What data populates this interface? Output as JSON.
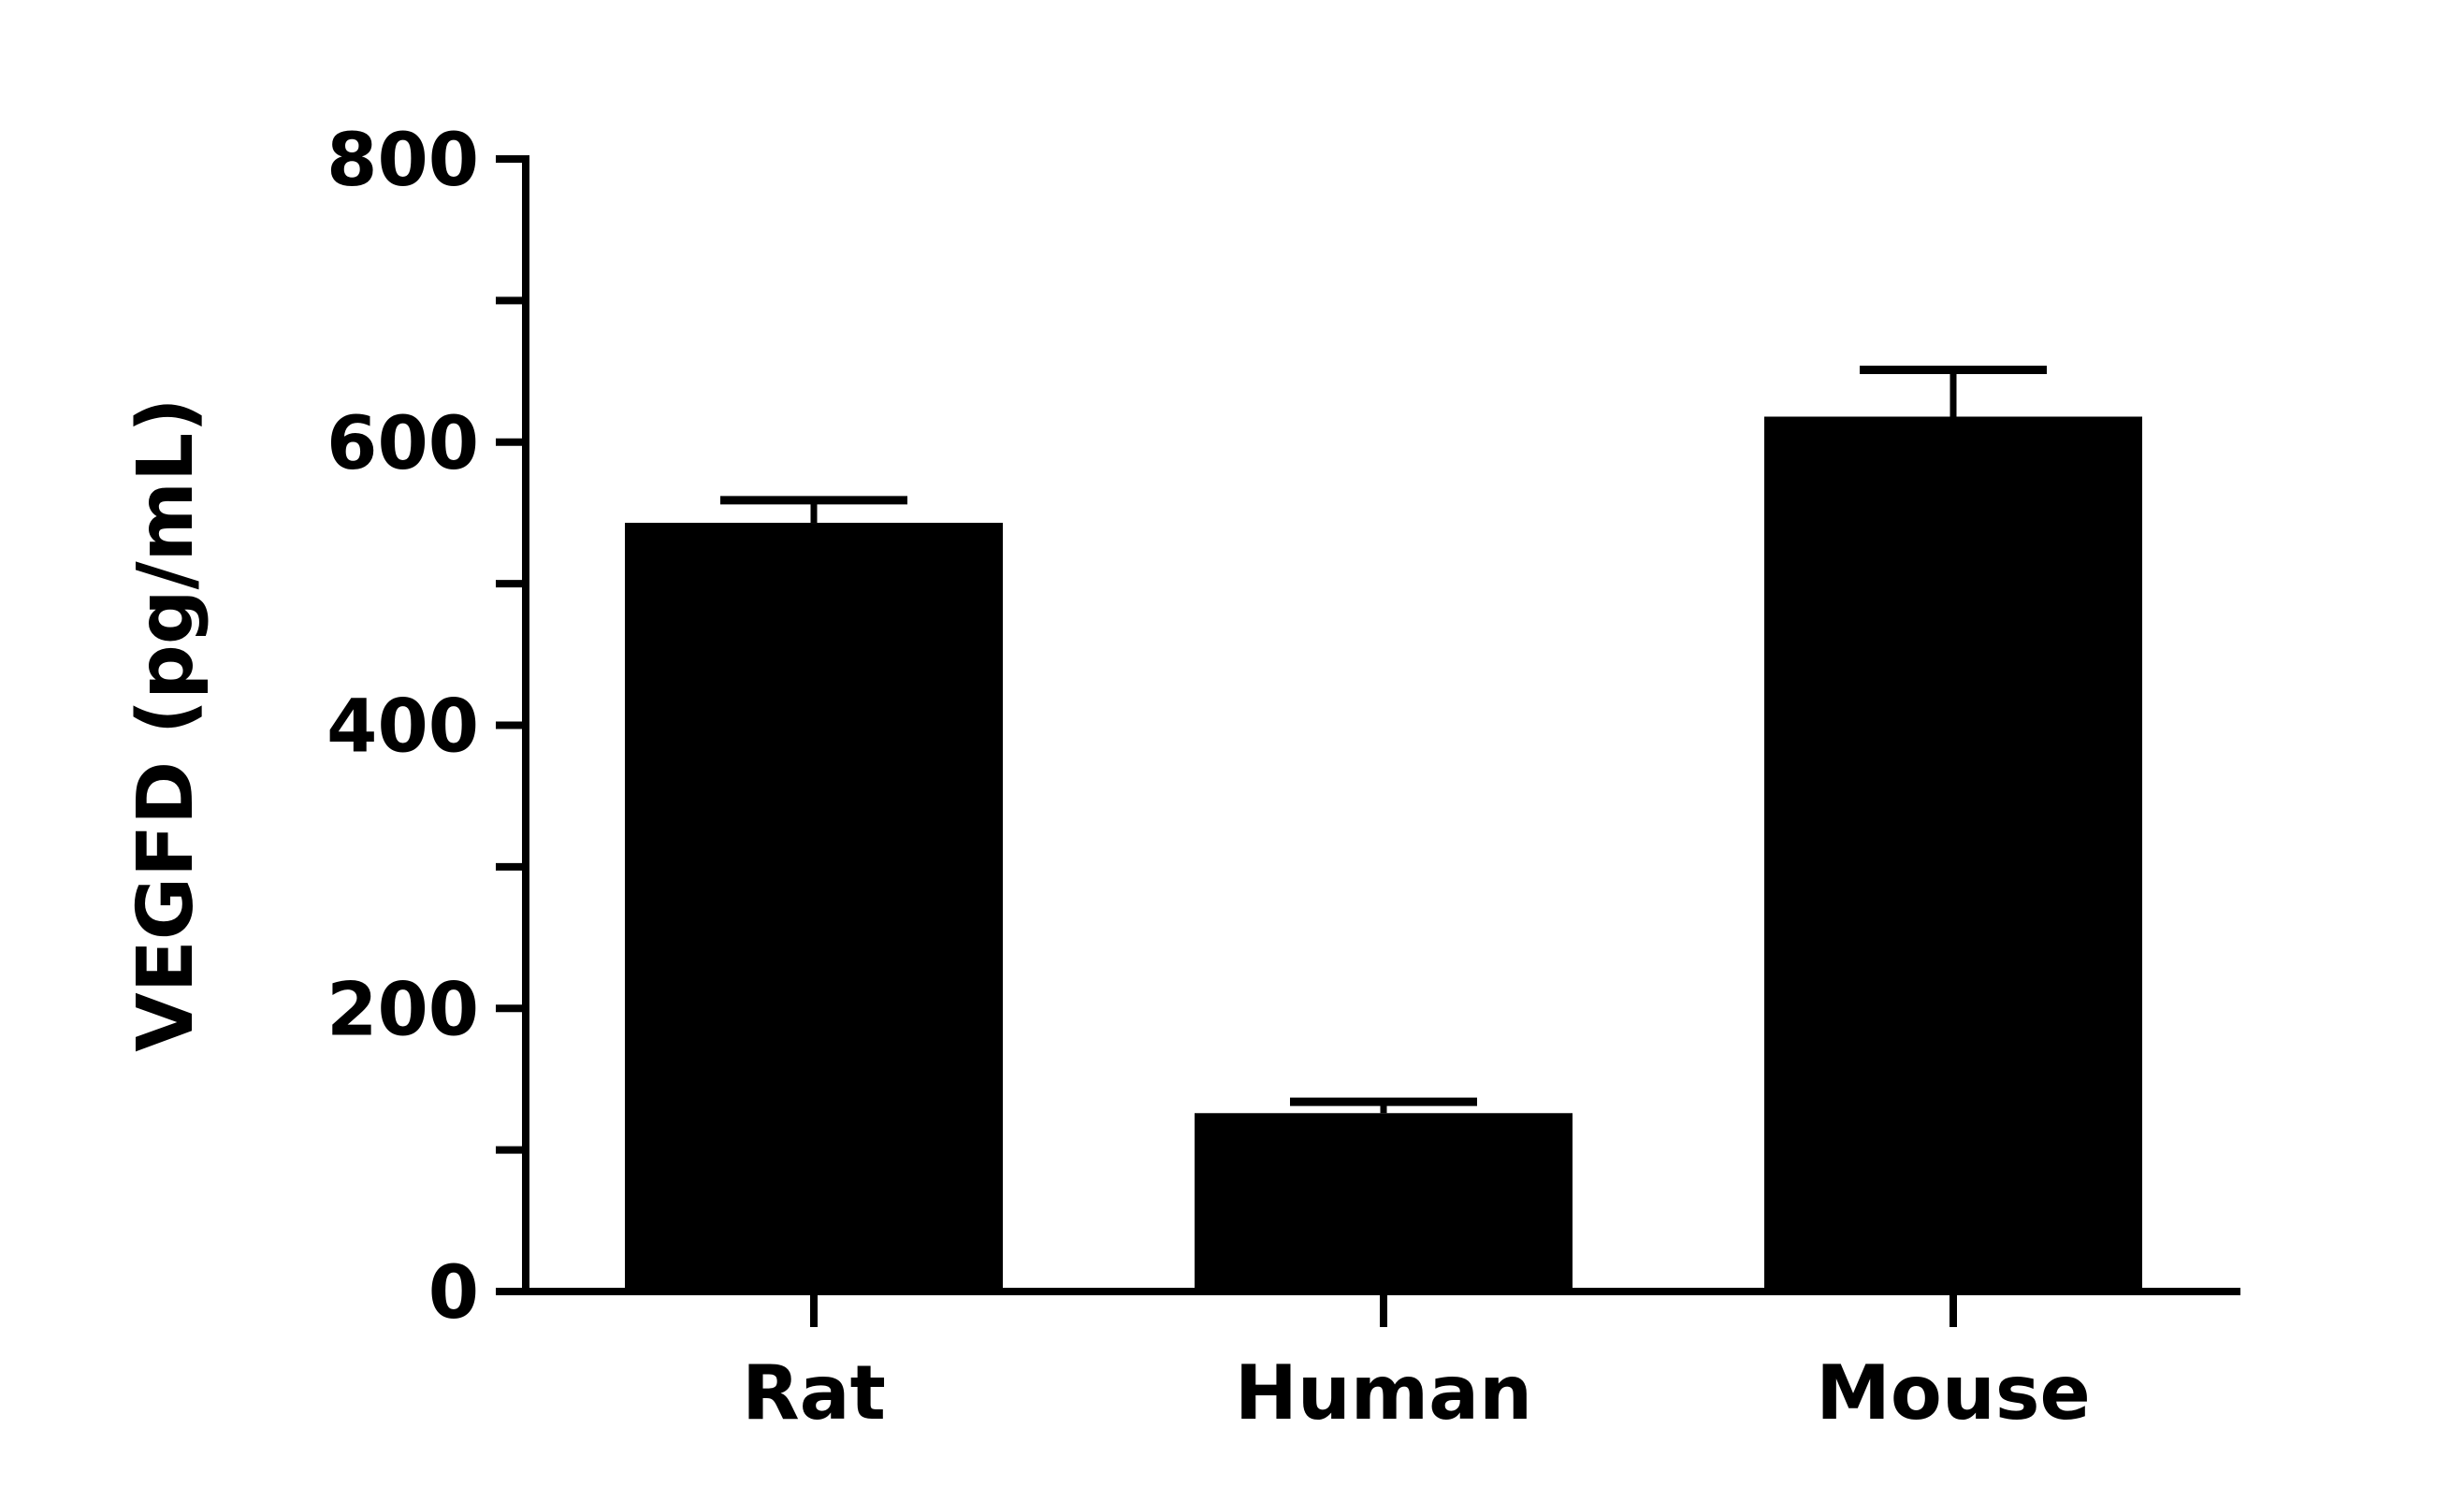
{
  "chart_data": {
    "type": "bar",
    "title": "",
    "xlabel": "",
    "ylabel": "VEGFD (pg/mL)",
    "categories": [
      "Rat",
      "Human",
      "Mouse"
    ],
    "values": [
      543,
      126,
      618
    ],
    "errors": [
      16,
      8,
      33
    ],
    "ylim": [
      0,
      800
    ],
    "yticks": [
      "0",
      "200",
      "400",
      "600",
      "800"
    ],
    "minor_ytick_step": 100,
    "grid": false,
    "legend": "none",
    "bar_color": "#000000",
    "axis_color": "#000000"
  }
}
